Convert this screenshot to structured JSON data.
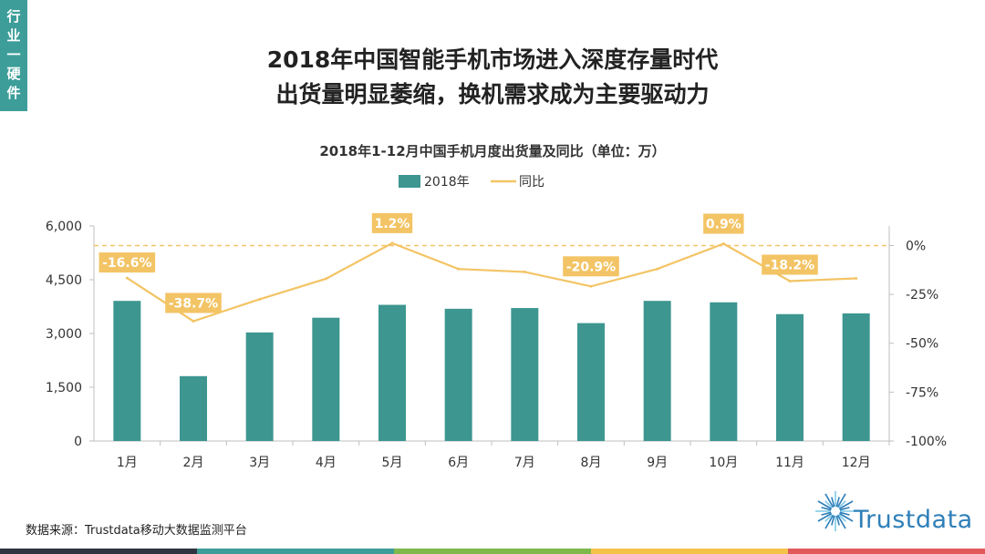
{
  "side_tab": {
    "chars": [
      "行",
      "业",
      "一",
      "硬",
      "件"
    ],
    "color": "#3d9e99"
  },
  "headline": {
    "line1": "2018年中国智能手机市场进入深度存量时代",
    "line2": "出货量明显萎缩，换机需求成为主要驱动力"
  },
  "footer": {
    "source": "数据来源：Trustdata移动大数据监测平台"
  },
  "logo": {
    "text": "Trustdata",
    "icon": "starburst-logo-icon",
    "color": "#2f7fb8"
  },
  "bottom_bar_colors": [
    "#2e3440",
    "#3d9e99",
    "#7fb84b",
    "#f5c24a",
    "#e05a5a"
  ],
  "chart_data": {
    "type": "bar",
    "title": "2018年1-12月中国手机月度出货量及同比（单位：万）",
    "categories": [
      "1月",
      "2月",
      "3月",
      "4月",
      "5月",
      "6月",
      "7月",
      "8月",
      "9月",
      "10月",
      "11月",
      "12月"
    ],
    "series": [
      {
        "name": "2018年",
        "type": "bar",
        "axis": "left",
        "color": "#3d9690",
        "values": [
          3910,
          1810,
          3030,
          3440,
          3800,
          3690,
          3710,
          3290,
          3910,
          3870,
          3540,
          3560
        ]
      },
      {
        "name": "同比",
        "type": "line",
        "axis": "right",
        "color": "#f3c465",
        "values": [
          -16.6,
          -38.7,
          -27.5,
          -17.0,
          1.2,
          -12.0,
          -13.5,
          -20.9,
          -12.0,
          0.9,
          -18.2,
          -16.8
        ],
        "labels": {
          "0": "-16.6%",
          "1": "-38.7%",
          "4": "1.2%",
          "7": "-20.9%",
          "9": "0.9%",
          "10": "-18.2%"
        }
      }
    ],
    "left_axis": {
      "ylim": [
        0,
        6000
      ],
      "ticks": [
        0,
        1500,
        3000,
        4500,
        6000
      ],
      "tick_labels": [
        "0",
        "1,500",
        "3,000",
        "4,500",
        "6,000"
      ]
    },
    "right_axis": {
      "ylim": [
        -100,
        10
      ],
      "ticks": [
        -100,
        -75,
        -50,
        -25,
        0
      ],
      "tick_labels": [
        "-100%",
        "-75%",
        "-50%",
        "-25%",
        "0%"
      ]
    },
    "reference_line": {
      "value": 0,
      "axis": "right",
      "style": "dashed",
      "color": "#f3c465"
    },
    "legend": {
      "position": "top-center"
    },
    "grid": false
  }
}
